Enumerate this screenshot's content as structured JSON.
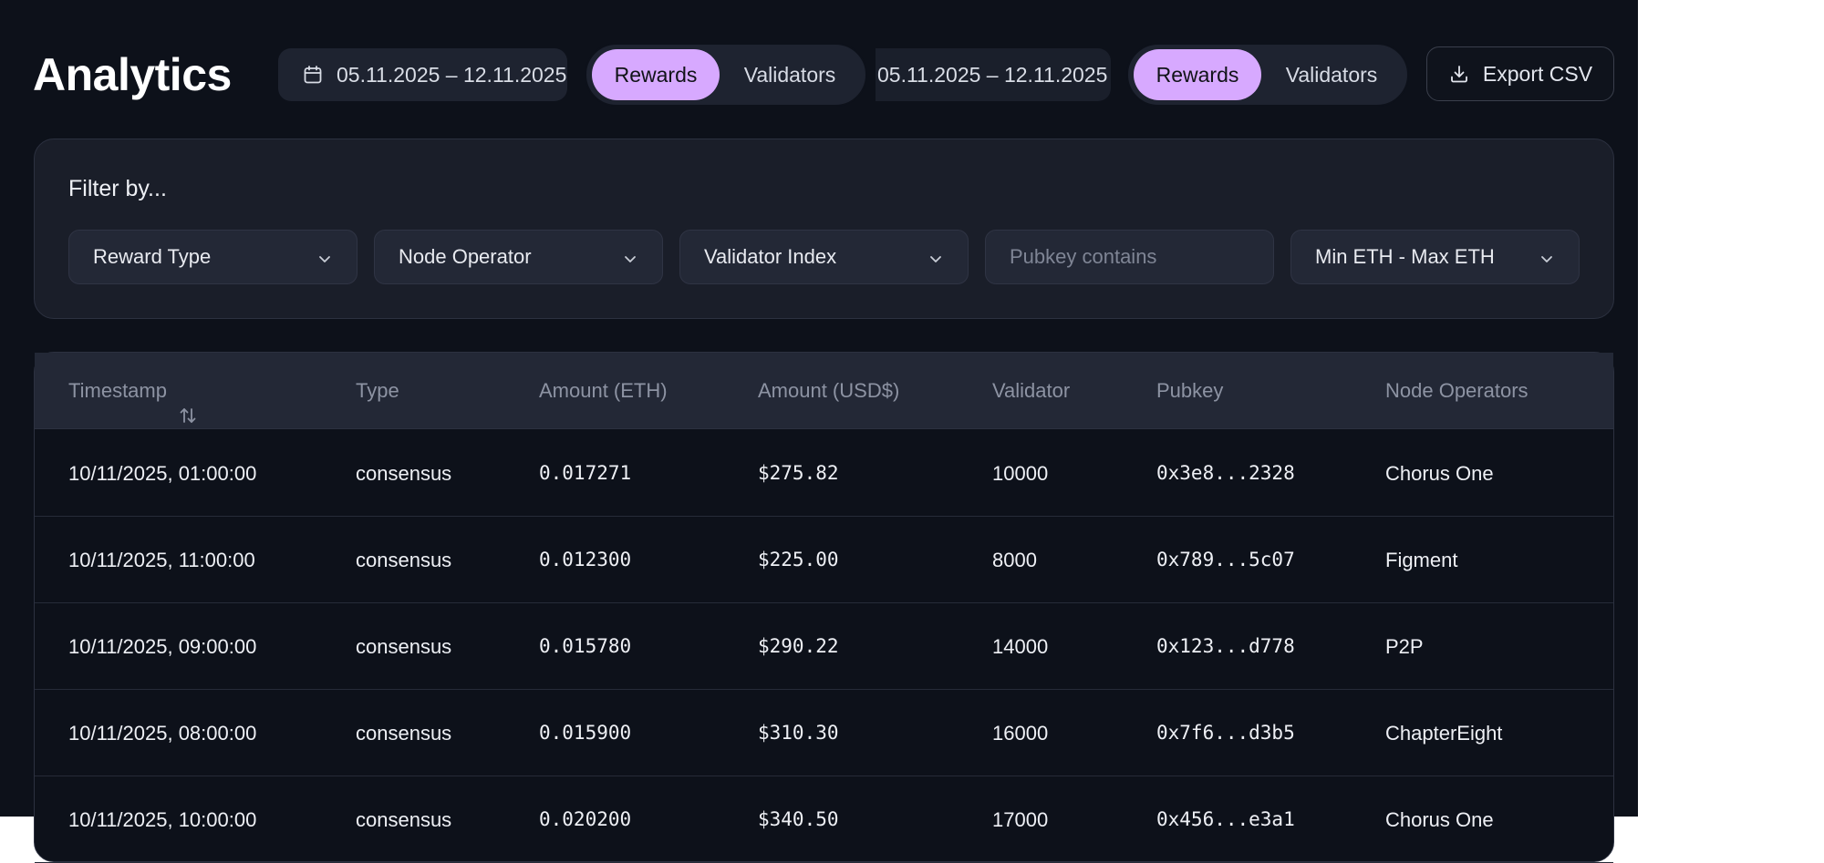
{
  "header": {
    "title": "Analytics",
    "date_range_1": "05.11.2025 – 12.11.2025",
    "date_range_2": "05.11.2025 – 12.11.2025",
    "tabs_1": [
      "Rewards",
      "Validators"
    ],
    "tabs_2": [
      "Rewards",
      "Validators"
    ],
    "active_tab": "Rewards",
    "export_label": "Export CSV"
  },
  "filters": {
    "title": "Filter by...",
    "reward_type": "Reward Type",
    "node_operator": "Node Operator",
    "validator_index": "Validator Index",
    "pubkey_placeholder": "Pubkey contains",
    "eth_range": "Min ETH - Max ETH"
  },
  "table": {
    "columns": [
      "Timestamp",
      "Type",
      "Amount (ETH)",
      "Amount (USD$)",
      "Validator",
      "Pubkey",
      "Node Operators"
    ],
    "rows": [
      [
        "10/11/2025, 01:00:00",
        "consensus",
        "0.017271",
        "$275.82",
        "10000",
        "0x3e8...2328",
        "Chorus One"
      ],
      [
        "10/11/2025, 11:00:00",
        "consensus",
        "0.012300",
        "$225.00",
        "8000",
        "0x789...5c07",
        "Figment"
      ],
      [
        "10/11/2025, 09:00:00",
        "consensus",
        "0.015780",
        "$290.22",
        "14000",
        "0x123...d778",
        "P2P"
      ],
      [
        "10/11/2025, 08:00:00",
        "consensus",
        "0.015900",
        "$310.30",
        "16000",
        "0x7f6...d3b5",
        "ChapterEight"
      ],
      [
        "10/11/2025, 10:00:00",
        "consensus",
        "0.020200",
        "$340.50",
        "17000",
        "0x456...e3a1",
        "Chorus One"
      ]
    ]
  },
  "colors": {
    "background": "#0d111a",
    "panel": "#1a1e29",
    "accent": "#d7a9ff"
  }
}
